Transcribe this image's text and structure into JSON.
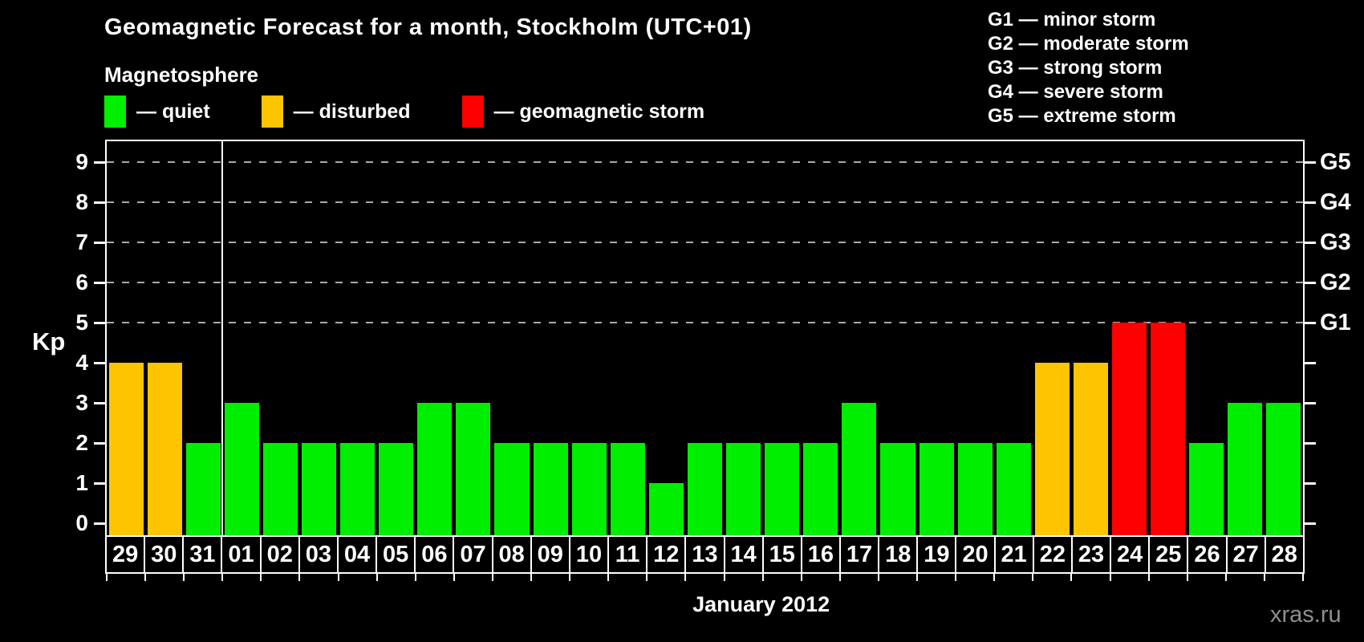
{
  "title": "Geomagnetic Forecast for a month, Stockholm (UTC+01)",
  "subtitle": "Magnetosphere",
  "legend": [
    {
      "key": "quiet",
      "label": "— quiet",
      "color": "#00EE00"
    },
    {
      "key": "disturbed",
      "label": "— disturbed",
      "color": "#FFC400"
    },
    {
      "key": "storm",
      "label": "— geomagnetic storm",
      "color": "#FF0000"
    }
  ],
  "g_scale_legend": [
    "G1 — minor storm",
    "G2 — moderate storm",
    "G3 — strong storm",
    "G4 — severe storm",
    "G5 — extreme storm"
  ],
  "watermark": "xras.ru",
  "chart_data": {
    "type": "bar",
    "title": "Geomagnetic Forecast for a month, Stockholm (UTC+01)",
    "xlabel": "January 2012",
    "ylabel": "Kp",
    "ylim": [
      0,
      9.5
    ],
    "y_ticks": [
      0,
      1,
      2,
      3,
      4,
      5,
      6,
      7,
      8,
      9
    ],
    "gridlines_at": [
      5,
      6,
      7,
      8,
      9
    ],
    "grid": "dashed horizontal at storm levels only",
    "legend_position": "top",
    "right_axis": [
      {
        "kp": 5,
        "label": "G1"
      },
      {
        "kp": 6,
        "label": "G2"
      },
      {
        "kp": 7,
        "label": "G3"
      },
      {
        "kp": 8,
        "label": "G4"
      },
      {
        "kp": 9,
        "label": "G5"
      }
    ],
    "categories": [
      "29",
      "30",
      "31",
      "01",
      "02",
      "03",
      "04",
      "05",
      "06",
      "07",
      "08",
      "09",
      "10",
      "11",
      "12",
      "13",
      "14",
      "15",
      "16",
      "17",
      "18",
      "19",
      "20",
      "21",
      "22",
      "23",
      "24",
      "25",
      "26",
      "27",
      "28"
    ],
    "values": [
      4,
      4,
      2,
      3,
      2,
      2,
      2,
      2,
      3,
      3,
      2,
      2,
      2,
      2,
      1,
      2,
      2,
      2,
      2,
      3,
      2,
      2,
      2,
      2,
      4,
      4,
      5,
      5,
      2,
      3,
      3
    ],
    "month_separator_after_category": "31",
    "colors": {
      "quiet": "#00EE00",
      "disturbed": "#FFC400",
      "storm": "#FF0000"
    },
    "color_rule": {
      "quiet_kp_max": 3,
      "disturbed_kp": 4,
      "storm_kp_min": 5
    }
  }
}
